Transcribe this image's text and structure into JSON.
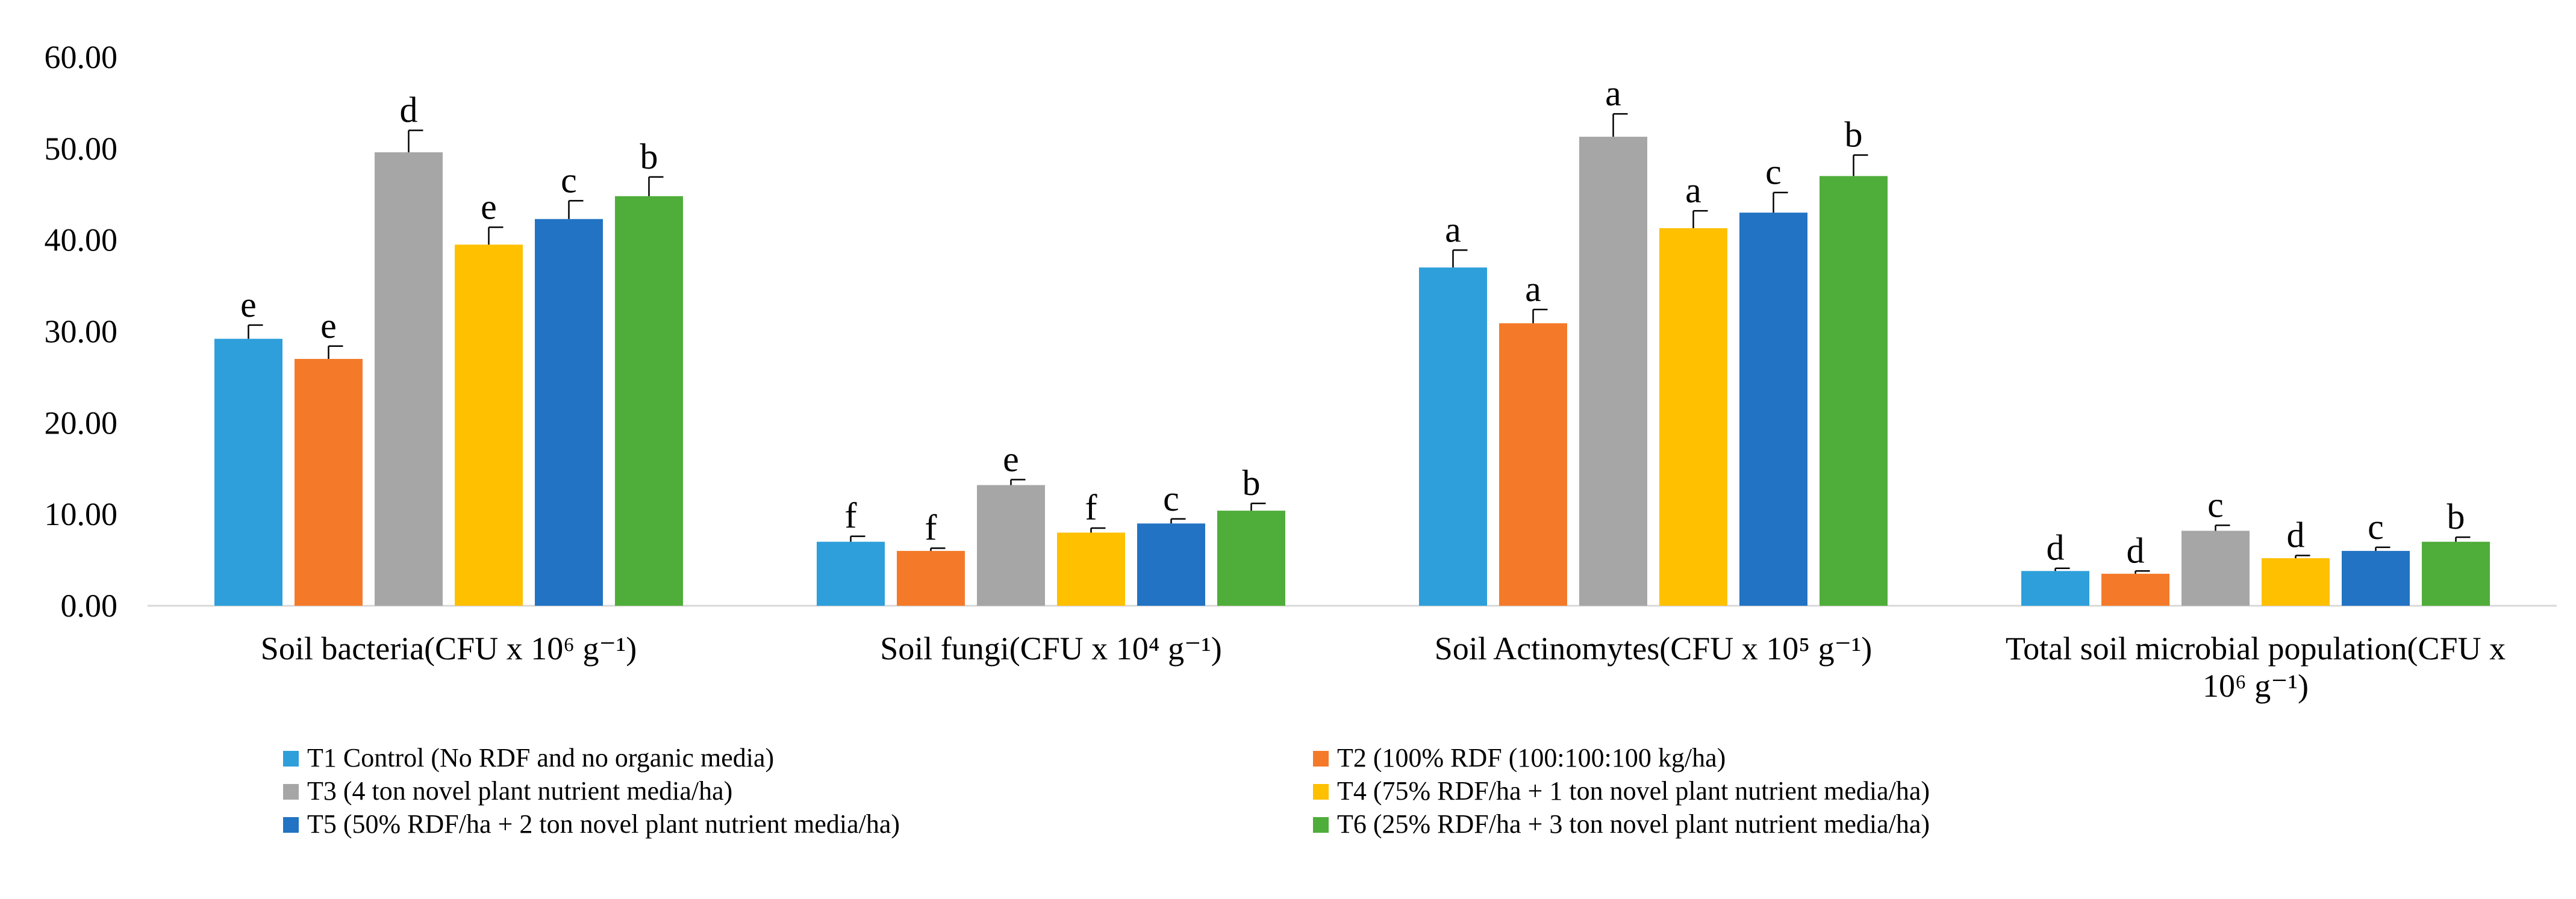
{
  "chart_data": {
    "type": "bar",
    "ylim": [
      0,
      60
    ],
    "yticks": [
      "0.00",
      "10.00",
      "20.00",
      "30.00",
      "40.00",
      "50.00",
      "60.00"
    ],
    "grid": false,
    "legend_position": "bottom",
    "categories": [
      {
        "label_lines": [
          "Soil bacteria(CFU x 10⁶ g⁻¹)"
        ]
      },
      {
        "label_lines": [
          "Soil fungi(CFU x 10⁴ g⁻¹)"
        ]
      },
      {
        "label_lines": [
          "Soil Actinomytes(CFU x 10⁵ g⁻¹)"
        ]
      },
      {
        "label_lines": [
          "Total soil microbial population(CFU x",
          "10⁶ g⁻¹)"
        ]
      }
    ],
    "series": [
      {
        "name": "T1 Control (No RDF and no organic media)",
        "color": "#2e9fda",
        "values": [
          29.2,
          7.0,
          37.0,
          3.8
        ],
        "errors": [
          1.5,
          0.6,
          1.9,
          0.3
        ],
        "letters": [
          "e",
          "f",
          "a",
          "d"
        ]
      },
      {
        "name": "T2 (100% RDF (100:100:100 kg/ha)",
        "color": "#f47a2a",
        "values": [
          27.0,
          6.0,
          30.9,
          3.5
        ],
        "errors": [
          1.4,
          0.3,
          1.5,
          0.3
        ],
        "letters": [
          "e",
          "f",
          "a",
          "d"
        ]
      },
      {
        "name": "T3 (4 ton novel plant nutrient media/ha)",
        "color": "#a6a6a6",
        "values": [
          49.6,
          13.2,
          51.3,
          8.2
        ],
        "errors": [
          2.4,
          0.6,
          2.5,
          0.6
        ],
        "letters": [
          "d",
          "e",
          "a",
          "c"
        ]
      },
      {
        "name": "T4 (75% RDF/ha + 1 ton novel plant nutrient media/ha)",
        "color": "#ffc000",
        "values": [
          39.5,
          8.0,
          41.3,
          5.2
        ],
        "errors": [
          1.9,
          0.5,
          1.9,
          0.3
        ],
        "letters": [
          "e",
          "f",
          "a",
          "d"
        ]
      },
      {
        "name": "T5 (50% RDF/ha + 2 ton novel plant nutrient media/ha)",
        "color": "#2273c3",
        "values": [
          42.3,
          9.0,
          43.0,
          6.0
        ],
        "errors": [
          2.0,
          0.5,
          2.2,
          0.4
        ],
        "letters": [
          "c",
          "c",
          "c",
          "c"
        ]
      },
      {
        "name": "T6 (25% RDF/ha + 3 ton novel plant nutrient media/ha)",
        "color": "#4fad3a",
        "values": [
          44.8,
          10.4,
          47.0,
          7.0
        ],
        "errors": [
          2.1,
          0.8,
          2.3,
          0.5
        ],
        "letters": [
          "b",
          "b",
          "b",
          "b"
        ]
      }
    ]
  }
}
